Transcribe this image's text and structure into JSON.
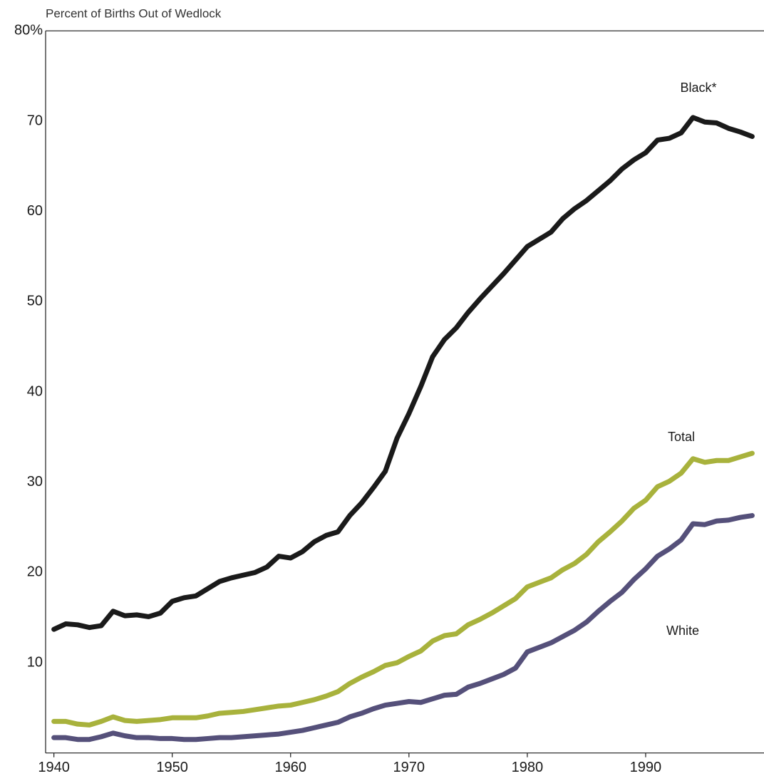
{
  "chart_data": {
    "type": "line",
    "y_label": "Percent of Births Out of Wedlock",
    "x": [
      1940,
      1941,
      1942,
      1943,
      1944,
      1945,
      1946,
      1947,
      1948,
      1949,
      1950,
      1951,
      1952,
      1953,
      1954,
      1955,
      1956,
      1957,
      1958,
      1959,
      1960,
      1961,
      1962,
      1963,
      1964,
      1965,
      1966,
      1967,
      1968,
      1969,
      1970,
      1971,
      1972,
      1973,
      1974,
      1975,
      1976,
      1977,
      1978,
      1979,
      1980,
      1981,
      1982,
      1983,
      1984,
      1985,
      1986,
      1987,
      1988,
      1989,
      1990,
      1991,
      1992,
      1993,
      1994,
      1995,
      1996,
      1997,
      1998,
      1999
    ],
    "series": [
      {
        "name": "Black*",
        "color": "#1a1a1a",
        "values": [
          13.7,
          14.3,
          14.2,
          13.9,
          14.1,
          15.7,
          15.2,
          15.3,
          15.1,
          15.5,
          16.8,
          17.2,
          17.4,
          18.2,
          19.0,
          19.4,
          19.7,
          20.0,
          20.6,
          21.8,
          21.6,
          22.3,
          23.4,
          24.1,
          24.5,
          26.3,
          27.7,
          29.4,
          31.2,
          34.9,
          37.6,
          40.6,
          43.9,
          45.8,
          47.1,
          48.8,
          50.3,
          51.7,
          53.1,
          54.6,
          56.1,
          56.9,
          57.7,
          59.2,
          60.3,
          61.2,
          62.3,
          63.4,
          64.7,
          65.7,
          66.5,
          67.9,
          68.1,
          68.7,
          70.4,
          69.9,
          69.8,
          69.2,
          68.8,
          68.3
        ]
      },
      {
        "name": "Total",
        "color": "#a8b23c",
        "values": [
          3.5,
          3.5,
          3.2,
          3.1,
          3.5,
          4.0,
          3.6,
          3.5,
          3.6,
          3.7,
          3.9,
          3.9,
          3.9,
          4.1,
          4.4,
          4.5,
          4.6,
          4.8,
          5.0,
          5.2,
          5.3,
          5.6,
          5.9,
          6.3,
          6.8,
          7.7,
          8.4,
          9.0,
          9.7,
          10.0,
          10.7,
          11.3,
          12.4,
          13.0,
          13.2,
          14.2,
          14.8,
          15.5,
          16.3,
          17.1,
          18.4,
          18.9,
          19.4,
          20.3,
          21.0,
          22.0,
          23.4,
          24.5,
          25.7,
          27.1,
          28.0,
          29.5,
          30.1,
          31.0,
          32.6,
          32.2,
          32.4,
          32.4,
          32.8,
          33.2
        ]
      },
      {
        "name": "White",
        "color": "#55507a",
        "values": [
          1.7,
          1.7,
          1.5,
          1.5,
          1.8,
          2.2,
          1.9,
          1.7,
          1.7,
          1.6,
          1.6,
          1.5,
          1.5,
          1.6,
          1.7,
          1.7,
          1.8,
          1.9,
          2.0,
          2.1,
          2.3,
          2.5,
          2.8,
          3.1,
          3.4,
          4.0,
          4.4,
          4.9,
          5.3,
          5.5,
          5.7,
          5.6,
          6.0,
          6.4,
          6.5,
          7.3,
          7.7,
          8.2,
          8.7,
          9.4,
          11.2,
          11.7,
          12.2,
          12.9,
          13.6,
          14.5,
          15.7,
          16.8,
          17.8,
          19.2,
          20.4,
          21.8,
          22.6,
          23.6,
          25.4,
          25.3,
          25.7,
          25.8,
          26.1,
          26.3
        ]
      }
    ],
    "xlim": [
      1939.3,
      2000
    ],
    "xticks": [
      1940,
      1950,
      1960,
      1970,
      1980,
      1990
    ],
    "ylim": [
      0,
      80
    ],
    "yticks": [
      {
        "value": 80,
        "label": "80%"
      },
      70,
      60,
      50,
      40,
      30,
      20,
      10
    ],
    "grid": false
  }
}
